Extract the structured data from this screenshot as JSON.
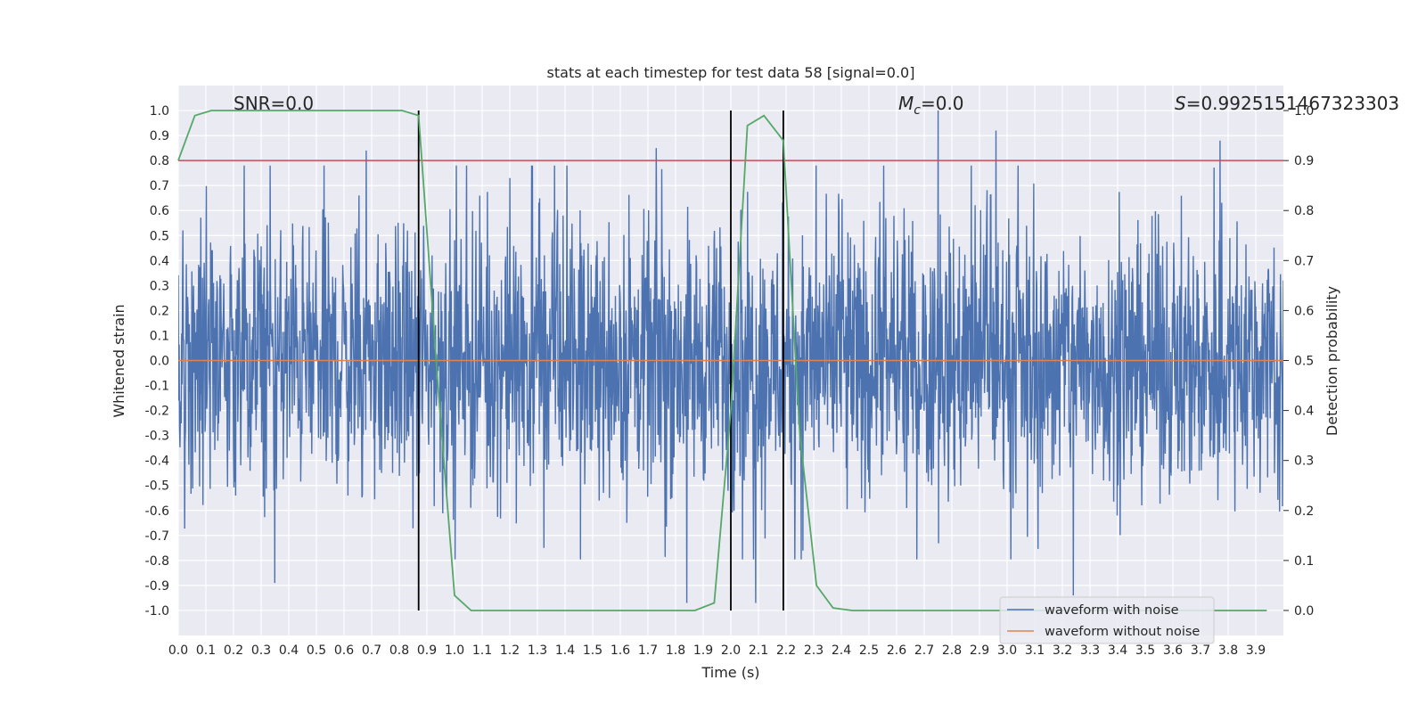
{
  "chart_data": {
    "type": "line",
    "title": "stats at each timestep for test data 58 [signal=0.0]",
    "xlabel": "Time (s)",
    "ylabel": "Whitened strain",
    "ylabel_right": "Detection probability",
    "xlim": [
      0.0,
      4.0
    ],
    "ylim": [
      -1.1,
      1.1
    ],
    "ylim_right": [
      -0.05,
      1.05
    ],
    "x_ticks": [
      "0.0",
      "0.1",
      "0.2",
      "0.3",
      "0.4",
      "0.5",
      "0.6",
      "0.7",
      "0.8",
      "0.9",
      "1.0",
      "1.1",
      "1.2",
      "1.3",
      "1.4",
      "1.5",
      "1.6",
      "1.7",
      "1.8",
      "1.9",
      "2.0",
      "2.1",
      "2.2",
      "2.3",
      "2.4",
      "2.5",
      "2.6",
      "2.7",
      "2.8",
      "2.9",
      "3.0",
      "3.1",
      "3.2",
      "3.3",
      "3.4",
      "3.5",
      "3.6",
      "3.7",
      "3.8",
      "3.9"
    ],
    "y_ticks": [
      "-1.0",
      "-0.9",
      "-0.8",
      "-0.7",
      "-0.6",
      "-0.5",
      "-0.4",
      "-0.3",
      "-0.2",
      "-0.1",
      "0.0",
      "0.1",
      "0.2",
      "0.3",
      "0.4",
      "0.5",
      "0.6",
      "0.7",
      "0.8",
      "0.9",
      "1.0"
    ],
    "y_ticks_right": [
      "0.0",
      "0.1",
      "0.2",
      "0.3",
      "0.4",
      "0.5",
      "0.6",
      "0.7",
      "0.8",
      "0.9",
      "1.0"
    ],
    "annotations": {
      "snr": "SNR=0.0",
      "mc_symbol": "M",
      "mc_sub": "c",
      "mc_value": "=0.0",
      "s_symbol": "S",
      "s_value": "=0.9925151467323303"
    },
    "threshold": 0.9,
    "vertical_markers": [
      0.87,
      2.0,
      2.19
    ],
    "series": [
      {
        "name": "waveform with noise",
        "color": "#4c72b0",
        "axis": "left",
        "description_amplitude_range": [
          -0.97,
          1.0
        ],
        "peaks": [
          {
            "t": 0.68,
            "v": 0.84
          },
          {
            "t": 1.73,
            "v": 0.85
          },
          {
            "t": 2.75,
            "v": 1.0
          },
          {
            "t": 2.96,
            "v": 0.92
          },
          {
            "t": 3.77,
            "v": 0.88
          },
          {
            "t": 0.35,
            "v": -0.89
          },
          {
            "t": 1.84,
            "v": -0.97
          },
          {
            "t": 2.09,
            "v": -0.97
          },
          {
            "t": 3.24,
            "v": -0.94
          }
        ]
      },
      {
        "name": "waveform without noise",
        "color": "#dd8452",
        "axis": "left",
        "values_constant": 0.0
      },
      {
        "name": "detection probability",
        "color": "#55a868",
        "axis": "right",
        "x": [
          0.0,
          0.06,
          0.12,
          0.19,
          0.25,
          0.31,
          0.37,
          0.44,
          0.5,
          0.56,
          0.62,
          0.69,
          0.75,
          0.81,
          0.87,
          0.94,
          1.0,
          1.06,
          1.12,
          1.19,
          1.25,
          1.31,
          1.37,
          1.44,
          1.5,
          1.56,
          1.62,
          1.69,
          1.75,
          1.81,
          1.87,
          1.94,
          2.0,
          2.06,
          2.12,
          2.19,
          2.25,
          2.31,
          2.37,
          2.44,
          2.5,
          2.56,
          2.62,
          2.69,
          2.75,
          2.81,
          2.87,
          2.94,
          3.0,
          3.06,
          3.12,
          3.19,
          3.25,
          3.31,
          3.37,
          3.44,
          3.5,
          3.56,
          3.62,
          3.69,
          3.75,
          3.81,
          3.87,
          3.94
        ],
        "values": [
          0.9,
          0.99,
          1.0,
          1.0,
          1.0,
          1.0,
          1.0,
          1.0,
          1.0,
          1.0,
          1.0,
          1.0,
          1.0,
          1.0,
          0.99,
          0.45,
          0.03,
          0.0,
          0.0,
          0.0,
          0.0,
          0.0,
          0.0,
          0.0,
          0.0,
          0.0,
          0.0,
          0.0,
          0.0,
          0.0,
          0.0,
          0.015,
          0.4,
          0.97,
          0.99,
          0.94,
          0.35,
          0.05,
          0.005,
          0.0,
          0.0,
          0.0,
          0.0,
          0.0,
          0.0,
          0.0,
          0.0,
          0.0,
          0.0,
          0.0,
          0.0,
          0.0,
          0.0,
          0.0,
          0.0,
          0.0,
          0.0,
          0.0,
          0.0,
          0.0,
          0.0,
          0.0,
          0.0,
          0.0
        ]
      }
    ],
    "legend": {
      "placement": "bottom-right",
      "entries": [
        {
          "label": "waveform with noise",
          "color": "#4c72b0"
        },
        {
          "label": "waveform without noise",
          "color": "#dd8452"
        }
      ]
    },
    "colors": {
      "axes_bg": "#eaeaf2",
      "grid": "#ffffff",
      "threshold": "#c44e52",
      "marker": "#000000"
    }
  }
}
